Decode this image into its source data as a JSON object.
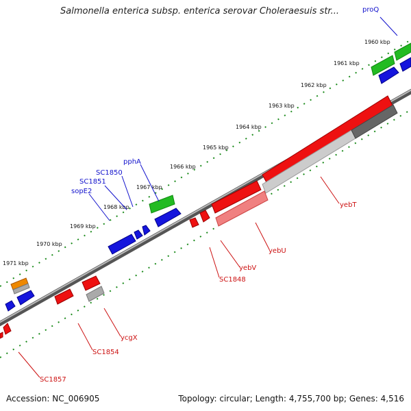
{
  "title": "Salmonella enterica subsp. enterica serovar Choleraesuis str...",
  "footer": {
    "accession": "Accession: NC_006905",
    "summary": "Topology: circular; Length: 4,755,700 bp; Genes: 4,516"
  },
  "scale_labels": [
    "1960 kbp",
    "1961 kbp",
    "1962 kbp",
    "1963 kbp",
    "1964 kbp",
    "1965 kbp",
    "1966 kbp",
    "1967 kbp",
    "1968 kbp",
    "1969 kbp",
    "1970 kbp",
    "1971 kbp"
  ],
  "gene_labels": {
    "forward": [
      "proQ",
      "pphA",
      "SC1850",
      "SC1851",
      "sopE2"
    ],
    "reverse": [
      "yebT",
      "yebU",
      "yebV",
      "SC1848",
      "ycgX",
      "SC1854",
      "SC1857"
    ]
  },
  "colors": {
    "forward_label": "#1010cc",
    "reverse_label": "#cc1010",
    "backbone": "#777777",
    "scale_tick": "#1a8a1a",
    "feature_green": "#22bb22",
    "feature_blue": "#1515dd",
    "feature_red": "#ee1111",
    "feature_orange": "#ee8800",
    "feature_gray": "#aaaaaa"
  }
}
